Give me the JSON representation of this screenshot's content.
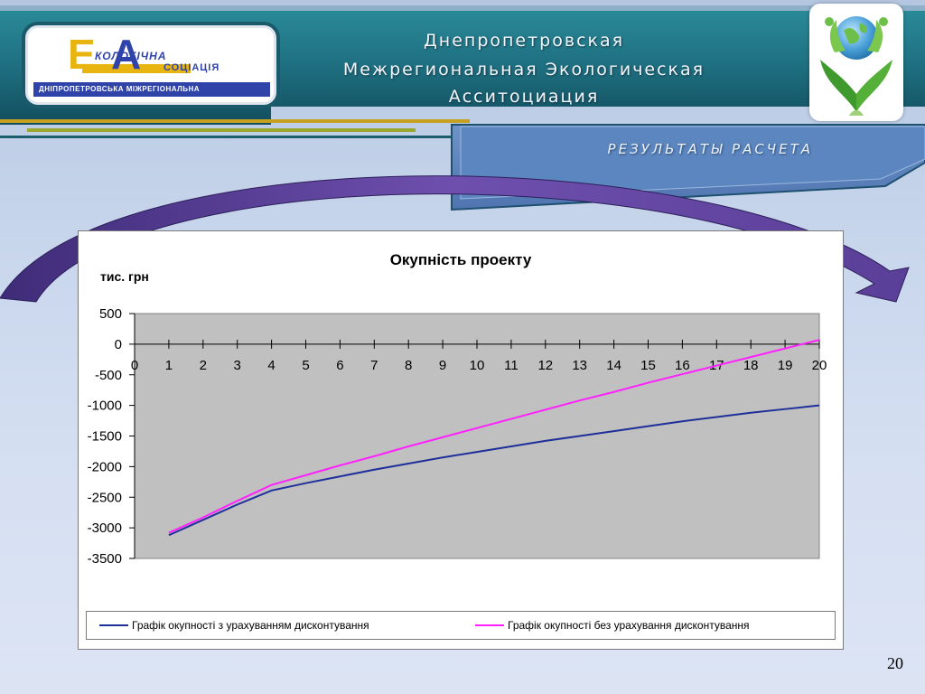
{
  "header": {
    "title_lines": [
      "Днепропетровская",
      "Межрегиональная Экологическая",
      "Асситоциация"
    ],
    "subtitle": "РЕЗУЛЬТАТЫ РАСЧЕТА"
  },
  "logo": {
    "letter_e": "Е",
    "letter_a": "А",
    "word1": "КОЛОГІЧНА",
    "word2": "СОЦІАЦІЯ",
    "strip_text": "ДНІПРОПЕТРОВСЬКА МІЖРЕГІОНАЛЬНА"
  },
  "globe_icon": "globe-with-leaves-icon",
  "chart_data": {
    "type": "line",
    "title": "Окупність проекту",
    "ylabel": "тис. грн",
    "xlabel": "",
    "x": [
      0,
      1,
      2,
      3,
      4,
      5,
      6,
      7,
      8,
      9,
      10,
      11,
      12,
      13,
      14,
      15,
      16,
      17,
      18,
      19,
      20
    ],
    "xlim": [
      0,
      20
    ],
    "ylim": [
      -3500,
      500
    ],
    "yticks": [
      500,
      0,
      -500,
      -1000,
      -1500,
      -2000,
      -2500,
      -3000,
      -3500
    ],
    "grid": false,
    "plot_background": "#c0c0c0",
    "legend_position": "bottom",
    "series": [
      {
        "name": "Графік окупності  з урахуванням  дисконтування",
        "color": "#1f2f9a",
        "x": [
          1,
          2,
          3,
          4,
          5,
          6,
          7,
          8,
          9,
          10,
          11,
          12,
          13,
          14,
          15,
          16,
          17,
          18,
          19,
          20
        ],
        "values": [
          -3120,
          -2870,
          -2620,
          -2390,
          -2270,
          -2160,
          -2050,
          -1950,
          -1850,
          -1760,
          -1670,
          -1580,
          -1500,
          -1420,
          -1340,
          -1260,
          -1190,
          -1120,
          -1060,
          -1000
        ]
      },
      {
        "name": "Графік окупності  без урахування  дисконтування",
        "color": "#ff22ff",
        "x": [
          1,
          2,
          3,
          4,
          5,
          6,
          7,
          8,
          9,
          10,
          11,
          12,
          13,
          14,
          15,
          16,
          17,
          18,
          19,
          20
        ],
        "values": [
          -3080,
          -2830,
          -2560,
          -2300,
          -2140,
          -1980,
          -1830,
          -1670,
          -1520,
          -1370,
          -1220,
          -1070,
          -920,
          -780,
          -630,
          -490,
          -350,
          -210,
          -70,
          70
        ]
      }
    ]
  },
  "page_number": "20"
}
